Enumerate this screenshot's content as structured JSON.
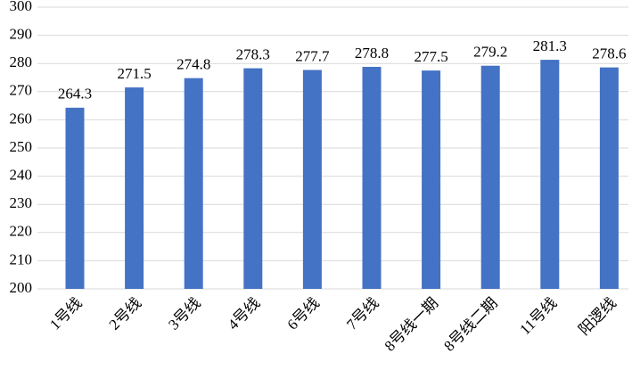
{
  "chart_data": {
    "type": "bar",
    "categories": [
      "1号线",
      "2号线",
      "3号线",
      "4号线",
      "6号线",
      "7号线",
      "8号线一期",
      "8号线二期",
      "11号线",
      "阳逻线"
    ],
    "values": [
      264.3,
      271.5,
      274.8,
      278.3,
      277.7,
      278.8,
      277.5,
      279.2,
      281.3,
      278.6
    ],
    "color": "#4472c4",
    "ylim": [
      200,
      300
    ],
    "yticks": [
      200,
      210,
      220,
      230,
      240,
      250,
      260,
      270,
      280,
      290,
      300
    ],
    "grid": true
  }
}
